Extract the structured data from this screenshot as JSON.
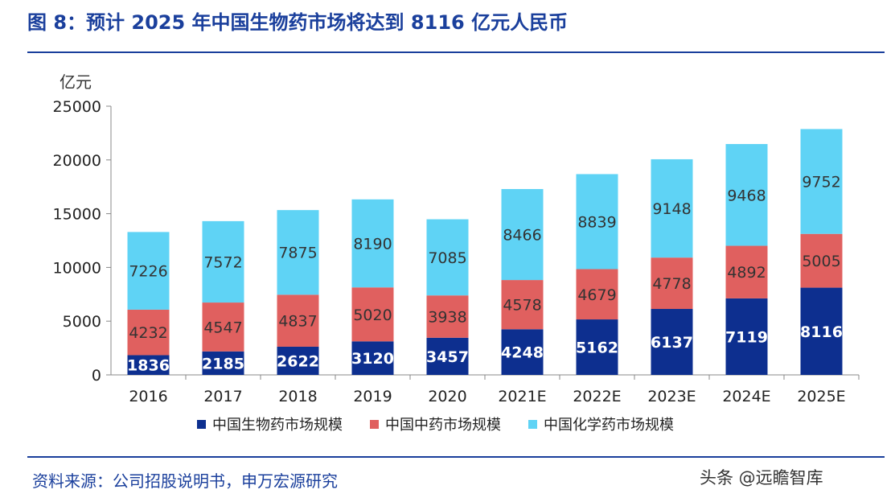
{
  "title": "图 8：预计 2025 年中国生物药市场将达到 8116 亿元人民币",
  "unit_label": "亿元",
  "source": "资料来源：公司招股说明书，申万宏源研究",
  "watermark": "头条 @远瞻智库",
  "colors": {
    "bio": "#0d2f8f",
    "tcm": "#e0605f",
    "chem": "#5fd3f5",
    "accent": "#1a3f9c"
  },
  "chart_data": {
    "type": "bar",
    "stacked": true,
    "categories": [
      "2016",
      "2017",
      "2018",
      "2019",
      "2020",
      "2021E",
      "2022E",
      "2023E",
      "2024E",
      "2025E"
    ],
    "series": [
      {
        "name": "中国生物药市场规模",
        "values": [
          1836,
          2185,
          2622,
          3120,
          3457,
          4248,
          5162,
          6137,
          7119,
          8116
        ]
      },
      {
        "name": "中国中药市场规模",
        "values": [
          4232,
          4547,
          4837,
          5020,
          3938,
          4578,
          4679,
          4778,
          4892,
          5005
        ]
      },
      {
        "name": "中国化学药市场规模",
        "values": [
          7226,
          7572,
          7875,
          8190,
          7085,
          8466,
          8839,
          9148,
          9468,
          9752
        ]
      }
    ],
    "y_ticks": [
      "0",
      "5000",
      "10000",
      "15000",
      "20000",
      "25000"
    ],
    "ylim": [
      0,
      25000
    ],
    "grid": false,
    "legend_position": "bottom"
  }
}
